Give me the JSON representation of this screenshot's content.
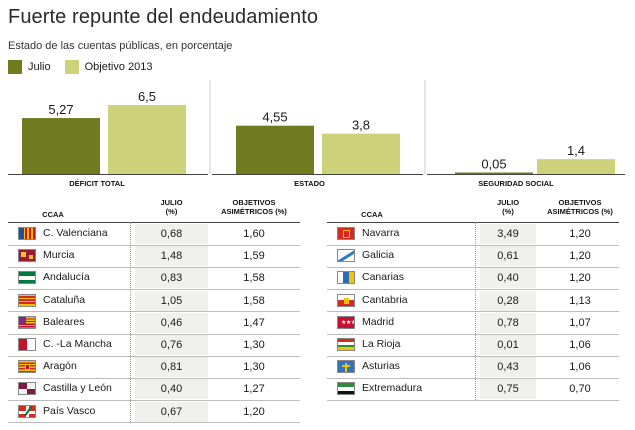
{
  "title": "Fuerte repunte del endeudamiento",
  "subtitle": "Estado de las cuentas públicas, en porcentaje",
  "legend": [
    {
      "label": "Julio",
      "color": "#707a1e"
    },
    {
      "label": "Objetivo 2013",
      "color": "#ccd17a"
    }
  ],
  "chart_data": {
    "type": "bar",
    "categories": [
      "DÉFICIT TOTAL",
      "ESTADO",
      "SEGURIDAD SOCIAL"
    ],
    "series": [
      {
        "name": "Julio",
        "values": [
          5.27,
          4.55,
          0.05
        ],
        "labels": [
          "5,27",
          "4,55",
          "0,05"
        ],
        "color": "#707a1e"
      },
      {
        "name": "Objetivo 2013",
        "values": [
          6.5,
          3.8,
          1.4
        ],
        "labels": [
          "6,5",
          "3,8",
          "1,4"
        ],
        "color": "#ccd17a"
      }
    ],
    "ylim": [
      0,
      6.5
    ],
    "grid": false
  },
  "tables": [
    {
      "headers": {
        "ccaa": "CCAA",
        "julio": "JULIO\n(%)",
        "objetivos": "OBJETIVOS\nASIMÉTRICOS (%)"
      },
      "rows": [
        {
          "name": "C. Valenciana",
          "julio": "0,68",
          "objetivo": "1,60",
          "flag": "valenciana"
        },
        {
          "name": "Murcia",
          "julio": "1,48",
          "objetivo": "1,59",
          "flag": "murcia"
        },
        {
          "name": "Andalucía",
          "julio": "0,83",
          "objetivo": "1,58",
          "flag": "andalucia"
        },
        {
          "name": "Cataluña",
          "julio": "1,05",
          "objetivo": "1,58",
          "flag": "cataluna"
        },
        {
          "name": "Baleares",
          "julio": "0,46",
          "objetivo": "1,47",
          "flag": "baleares"
        },
        {
          "name": "C. -La Mancha",
          "julio": "0,76",
          "objetivo": "1,30",
          "flag": "mancha"
        },
        {
          "name": "Aragón",
          "julio": "0,81",
          "objetivo": "1,30",
          "flag": "aragon"
        },
        {
          "name": "Castilla y León",
          "julio": "0,40",
          "objetivo": "1,27",
          "flag": "castillaleon"
        },
        {
          "name": "País Vasco",
          "julio": "0,67",
          "objetivo": "1,20",
          "flag": "paisvasco"
        }
      ]
    },
    {
      "headers": {
        "ccaa": "CCAA",
        "julio": "JULIO\n(%)",
        "objetivos": "OBJETIVOS\nASIMÉTRICOS (%)"
      },
      "rows": [
        {
          "name": "Navarra",
          "julio": "3,49",
          "objetivo": "1,20",
          "flag": "navarra"
        },
        {
          "name": "Galicia",
          "julio": "0,61",
          "objetivo": "1,20",
          "flag": "galicia"
        },
        {
          "name": "Canarias",
          "julio": "0,40",
          "objetivo": "1,20",
          "flag": "canarias"
        },
        {
          "name": "Cantabria",
          "julio": "0,28",
          "objetivo": "1,13",
          "flag": "cantabria"
        },
        {
          "name": "Madrid",
          "julio": "0,78",
          "objetivo": "1,07",
          "flag": "madrid"
        },
        {
          "name": "La Rioja",
          "julio": "0,01",
          "objetivo": "1,06",
          "flag": "rioja"
        },
        {
          "name": "Asturias",
          "julio": "0,43",
          "objetivo": "1,06",
          "flag": "asturias"
        },
        {
          "name": "Extremadura",
          "julio": "0,75",
          "objetivo": "0,70",
          "flag": "extremadura"
        }
      ]
    }
  ]
}
